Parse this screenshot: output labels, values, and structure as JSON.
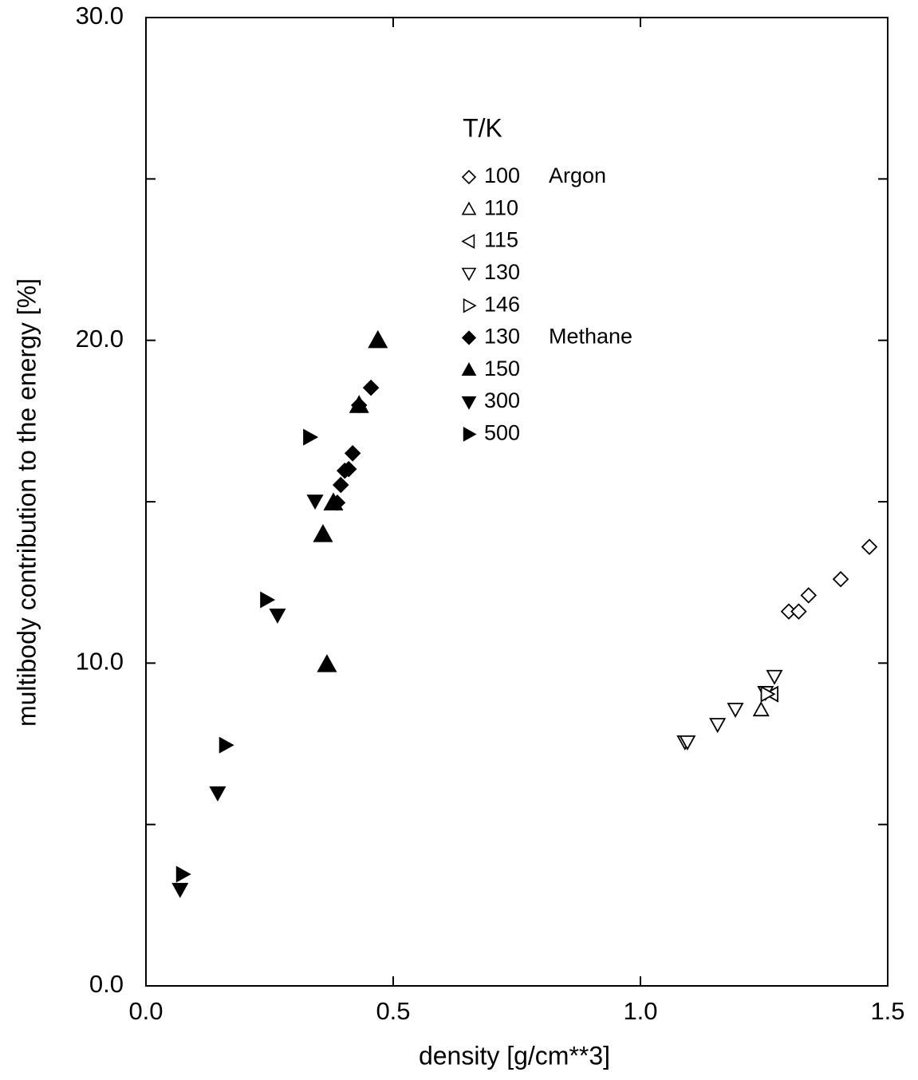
{
  "chart_data": {
    "type": "scatter",
    "xlabel": "density [g/cm**3]",
    "ylabel": "multibody contribution to the energy [%]",
    "xlim": [
      0,
      1.5
    ],
    "ylim": [
      0,
      30
    ],
    "xticks": [
      {
        "value": 0,
        "label": "0.0"
      },
      {
        "value": 0.5,
        "label": "0.5"
      },
      {
        "value": 1,
        "label": "1.0"
      },
      {
        "value": 1.5,
        "label": "1.5"
      }
    ],
    "yticks": [
      {
        "value": 0,
        "label": "0.0"
      },
      {
        "value": 10,
        "label": "10.0"
      },
      {
        "value": 20,
        "label": "20.0"
      },
      {
        "value": 30,
        "label": "30.0"
      }
    ],
    "yminorticks": [
      5,
      15,
      25
    ],
    "legend_title": "T/K",
    "legend_groups": [
      "Argon",
      "Methane"
    ],
    "series": [
      {
        "name": "100",
        "color": "#000",
        "marker": "diamond",
        "filled": false,
        "x": [
          1.3,
          1.32,
          1.34,
          1.405,
          1.463
        ],
        "values": [
          11.6,
          11.6,
          12.1,
          12.6,
          13.6
        ]
      },
      {
        "name": "110",
        "color": "#000",
        "marker": "triangle-up",
        "filled": false,
        "x": [
          1.244
        ],
        "values": [
          8.55
        ]
      },
      {
        "name": "115",
        "color": "#000",
        "marker": "triangle-left",
        "filled": false,
        "x": [
          1.266
        ],
        "values": [
          9.04
        ]
      },
      {
        "name": "130",
        "color": "#000",
        "marker": "triangle-down",
        "filled": false,
        "x": [
          1.09,
          1.095,
          1.156,
          1.192,
          1.253,
          1.271
        ],
        "values": [
          7.56,
          7.56,
          8.1,
          8.57,
          9.09,
          9.59
        ]
      },
      {
        "name": "146",
        "color": "#000",
        "marker": "triangle-right",
        "filled": false,
        "x": [
          1.256
        ],
        "values": [
          9.04
        ]
      },
      {
        "name": "130",
        "color": "#000",
        "marker": "diamond",
        "filled": true,
        "x": [
          0.387,
          0.394,
          0.402,
          0.41,
          0.418,
          0.431,
          0.455
        ],
        "values": [
          14.97,
          15.52,
          15.96,
          16.01,
          16.5,
          17.99,
          18.53
        ]
      },
      {
        "name": "150",
        "color": "#000",
        "marker": "triangle-up",
        "filled": true,
        "x": [
          0.358,
          0.366,
          0.379,
          0.431,
          0.469
        ],
        "values": [
          13.99,
          9.96,
          14.97,
          17.99,
          20.0
        ]
      },
      {
        "name": "300",
        "color": "#000",
        "marker": "triangle-down",
        "filled": true,
        "x": [
          0.069,
          0.145,
          0.266,
          0.342
        ],
        "values": [
          2.99,
          5.98,
          11.49,
          15.02
        ]
      },
      {
        "name": "500",
        "color": "#000",
        "marker": "triangle-right",
        "filled": true,
        "x": [
          0.074,
          0.161,
          0.244,
          0.331
        ],
        "values": [
          3.46,
          7.46,
          11.96,
          17.0
        ]
      }
    ]
  }
}
